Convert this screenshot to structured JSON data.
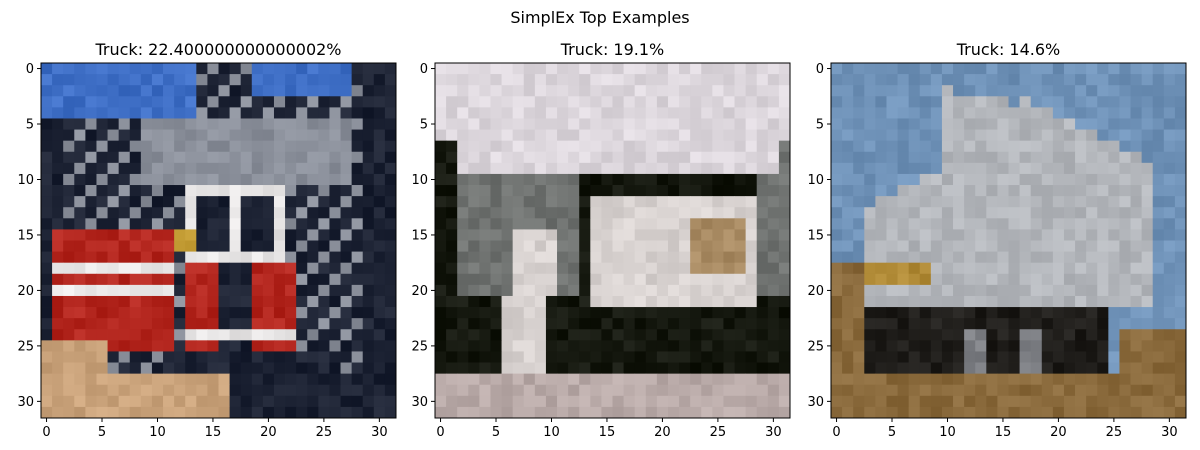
{
  "figure": {
    "suptitle": "SimplEx Top Examples"
  },
  "chart_data": [
    {
      "type": "heatmap",
      "title": "Truck: 22.400000000000002%",
      "xlabel": "",
      "ylabel": "",
      "xlim": [
        -0.5,
        31.5
      ],
      "ylim": [
        31.5,
        -0.5
      ],
      "xticks": [
        0,
        5,
        10,
        15,
        20,
        25,
        30
      ],
      "yticks": [
        0,
        5,
        10,
        15,
        20,
        25,
        30
      ],
      "xtick_labels": [
        "0",
        "5",
        "10",
        "15",
        "20",
        "25",
        "30"
      ],
      "ytick_labels": [
        "0",
        "5",
        "10",
        "15",
        "20",
        "25",
        "30"
      ],
      "grid": false,
      "content": "32x32 RGB image: red fire truck with white cab",
      "palette": {
        "sky": "#3f6fc6",
        "dark": "#1c2233",
        "red": "#b3261e",
        "white": "#e8e6e6",
        "gray": "#8a8f9a",
        "ground": "#c9a27a",
        "yellow": "#c9a23a"
      }
    },
    {
      "type": "heatmap",
      "title": "Truck: 19.1%",
      "xlabel": "",
      "ylabel": "",
      "xlim": [
        -0.5,
        31.5
      ],
      "ylim": [
        31.5,
        -0.5
      ],
      "xticks": [
        0,
        5,
        10,
        15,
        20,
        25,
        30
      ],
      "yticks": [
        0,
        5,
        10,
        15,
        20,
        25,
        30
      ],
      "xtick_labels": [
        "0",
        "5",
        "10",
        "15",
        "20",
        "25",
        "30"
      ],
      "ytick_labels": [
        "0",
        "5",
        "10",
        "15",
        "20",
        "25",
        "30"
      ],
      "grid": false,
      "content": "32x32 RGB image: white truck with dark chassis",
      "palette": {
        "sky": "#dcd6dc",
        "dark": "#15180f",
        "white": "#d8d2d0",
        "gray": "#6f7270",
        "ground": "#b9aaa8",
        "tan": "#a98b63"
      }
    },
    {
      "type": "heatmap",
      "title": "Truck: 14.6%",
      "xlabel": "",
      "ylabel": "",
      "xlim": [
        -0.5,
        31.5
      ],
      "ylim": [
        31.5,
        -0.5
      ],
      "xticks": [
        0,
        5,
        10,
        15,
        20,
        25,
        30
      ],
      "yticks": [
        0,
        5,
        10,
        15,
        20,
        25,
        30
      ],
      "xtick_labels": [
        "0",
        "5",
        "10",
        "15",
        "20",
        "25",
        "30"
      ],
      "ytick_labels": [
        "0",
        "5",
        "10",
        "15",
        "20",
        "25",
        "30"
      ],
      "grid": false,
      "content": "32x32 RGB image: silver box trailer truck on dirt road",
      "palette": {
        "sky": "#6f92b8",
        "trailer": "#b3b6bb",
        "dark": "#1f1d1a",
        "ground": "#8a6a3c",
        "yellow": "#b08a36",
        "gray": "#7d7f84"
      }
    }
  ]
}
